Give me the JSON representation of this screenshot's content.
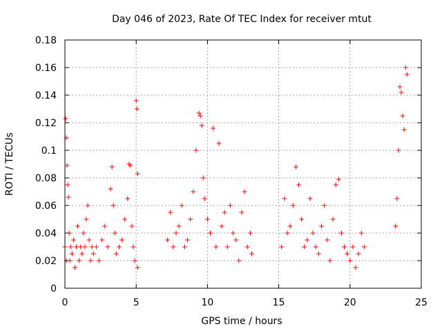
{
  "chart_data": {
    "type": "scatter",
    "title": "Day 046 of 2023, Rate Of TEC Index for receiver mtut",
    "xlabel": "GPS time / hours",
    "ylabel": "ROTI / TECUs",
    "xlim": [
      0,
      25
    ],
    "ylim": [
      0,
      0.18
    ],
    "x_ticks": [
      "0",
      "5",
      "10",
      "15",
      "20",
      "25"
    ],
    "y_ticks": [
      "0",
      "0.02",
      "0.04",
      "0.06",
      "0.08",
      "0.1",
      "0.12",
      "0.14",
      "0.16",
      "0.18"
    ],
    "grid": true,
    "marker": "+",
    "color": "#ff0000",
    "series": [
      {
        "x": [
          0.0,
          0.05,
          0.1,
          0.1,
          0.15,
          0.2,
          0.25,
          0.3,
          0.35,
          0.4,
          0.5,
          0.6,
          0.7,
          0.8,
          0.9,
          1.0,
          1.1,
          1.2,
          1.3,
          1.4,
          1.5,
          1.6,
          1.7,
          1.8,
          1.9,
          2.0,
          2.2,
          2.4,
          2.6,
          2.8,
          3.0,
          3.2,
          3.3,
          3.4,
          3.5,
          3.6,
          3.8,
          4.0,
          4.2,
          4.4,
          4.5,
          4.6,
          4.7,
          4.8,
          4.9,
          5.0,
          5.05,
          5.1,
          5.1,
          7.2,
          7.4,
          7.6,
          7.8,
          8.0,
          8.2,
          8.4,
          8.6,
          8.8,
          9.0,
          9.2,
          9.4,
          9.5,
          9.6,
          9.7,
          9.8,
          10.0,
          10.2,
          10.4,
          10.6,
          10.8,
          11.0,
          11.2,
          11.4,
          11.6,
          11.8,
          12.0,
          12.2,
          12.4,
          12.6,
          12.8,
          13.0,
          13.1,
          15.2,
          15.4,
          15.6,
          15.8,
          16.0,
          16.2,
          16.4,
          16.6,
          16.8,
          17.0,
          17.2,
          17.4,
          17.6,
          17.8,
          18.0,
          18.2,
          18.4,
          18.6,
          18.8,
          19.0,
          19.2,
          19.4,
          19.6,
          19.8,
          20.0,
          20.2,
          20.4,
          20.6,
          20.8,
          21.0,
          23.2,
          23.3,
          23.4,
          23.5,
          23.6,
          23.7,
          23.8,
          23.9,
          24.0
        ],
        "y": [
          0.03,
          0.123,
          0.109,
          0.02,
          0.089,
          0.075,
          0.066,
          0.04,
          0.02,
          0.03,
          0.025,
          0.035,
          0.015,
          0.03,
          0.045,
          0.02,
          0.03,
          0.025,
          0.04,
          0.03,
          0.05,
          0.06,
          0.035,
          0.02,
          0.03,
          0.025,
          0.03,
          0.02,
          0.035,
          0.045,
          0.03,
          0.072,
          0.088,
          0.06,
          0.04,
          0.025,
          0.03,
          0.035,
          0.05,
          0.065,
          0.09,
          0.089,
          0.045,
          0.03,
          0.02,
          0.136,
          0.13,
          0.083,
          0.015,
          0.035,
          0.055,
          0.03,
          0.04,
          0.045,
          0.06,
          0.03,
          0.035,
          0.05,
          0.07,
          0.1,
          0.127,
          0.125,
          0.118,
          0.08,
          0.065,
          0.05,
          0.04,
          0.116,
          0.03,
          0.105,
          0.045,
          0.055,
          0.03,
          0.06,
          0.04,
          0.035,
          0.02,
          0.055,
          0.07,
          0.03,
          0.04,
          0.025,
          0.03,
          0.065,
          0.04,
          0.045,
          0.06,
          0.088,
          0.075,
          0.05,
          0.03,
          0.035,
          0.065,
          0.04,
          0.03,
          0.025,
          0.045,
          0.06,
          0.035,
          0.02,
          0.05,
          0.075,
          0.079,
          0.04,
          0.03,
          0.025,
          0.02,
          0.03,
          0.015,
          0.025,
          0.04,
          0.03,
          0.045,
          0.065,
          0.1,
          0.146,
          0.142,
          0.125,
          0.115,
          0.16,
          0.155
        ]
      }
    ]
  }
}
